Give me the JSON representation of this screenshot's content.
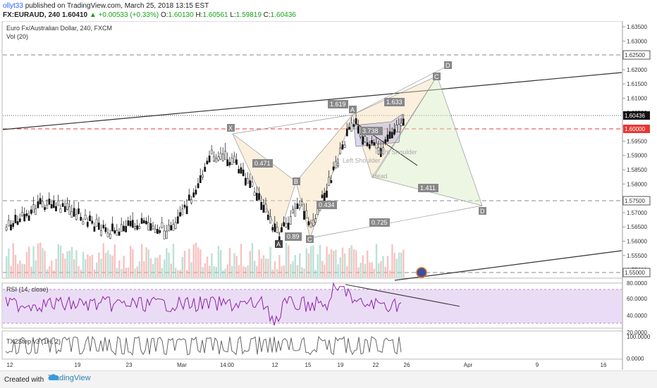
{
  "header": {
    "user": "ollyt33",
    "published": "published on TradingView.com, March 25, 2018 13:15 EST",
    "symbol_line": "FX:EURAUD, 240",
    "price": "1.60410",
    "change": "+0.00533 (+0.33%)",
    "o_label": "O:",
    "o": "1.60130",
    "h_label": "H:",
    "h": "1.60561",
    "l_label": "L:",
    "l": "1.59819",
    "c_label": "C:",
    "c": "1.60436"
  },
  "chart": {
    "title": "Euro Fx/Australian Dollar, 240, FXCM",
    "vol_label": "Vol (20)",
    "rsi_label": "RSI (14, close)",
    "tx_label": "TX2Step v3 (1H, 2)",
    "price_ticks": [
      "1.63500",
      "1.63000",
      "1.62500",
      "1.62000",
      "1.61500",
      "1.61000",
      "1.60500",
      "1.60436",
      "1.60000",
      "1.59500",
      "1.59000",
      "1.58500",
      "1.58000",
      "1.57500",
      "1.57000",
      "1.56500",
      "1.56000",
      "1.55500",
      "1.55000"
    ],
    "marked_levels": {
      "l1": "1.62500",
      "l2": "1.60436",
      "l3": "1.60000",
      "l4": "1.57500",
      "l5": "1.55000"
    },
    "rsi_ticks": [
      "80.0000",
      "60.0000",
      "40.0000",
      "20.0000"
    ],
    "tx_ticks": [
      "100.0000",
      "0.0000"
    ],
    "date_ticks": [
      "12",
      "19",
      "23",
      "Mar",
      "14:00",
      "12",
      "15",
      "19",
      "22",
      "26",
      "Apr",
      "9",
      "16"
    ],
    "pattern_labels": {
      "X": "X",
      "A": "A",
      "B": "B",
      "C": "C",
      "D": "D",
      "A2": "A",
      "C2": "C",
      "D2": "D",
      "r1": "1.619",
      "r2": "1.633",
      "r3": "0.471",
      "r4": "0.89",
      "r5": "0.434",
      "r6": "0.725",
      "r7": "1.411",
      "r8": "3.738",
      "left_shoulder": "Left Shoulder",
      "right_shoulder": "Right Shoulder",
      "head": "Head"
    },
    "colors": {
      "up": "#26a69a",
      "down": "#ef5350",
      "level_red": "#e53935",
      "pattern": "#f5deb3",
      "rsi_fill": "#e8d7f5",
      "tx_red": "#e53935",
      "tx_green": "#43d343"
    }
  },
  "footer": {
    "created_with": "Created with",
    "brand": "TradingView"
  }
}
